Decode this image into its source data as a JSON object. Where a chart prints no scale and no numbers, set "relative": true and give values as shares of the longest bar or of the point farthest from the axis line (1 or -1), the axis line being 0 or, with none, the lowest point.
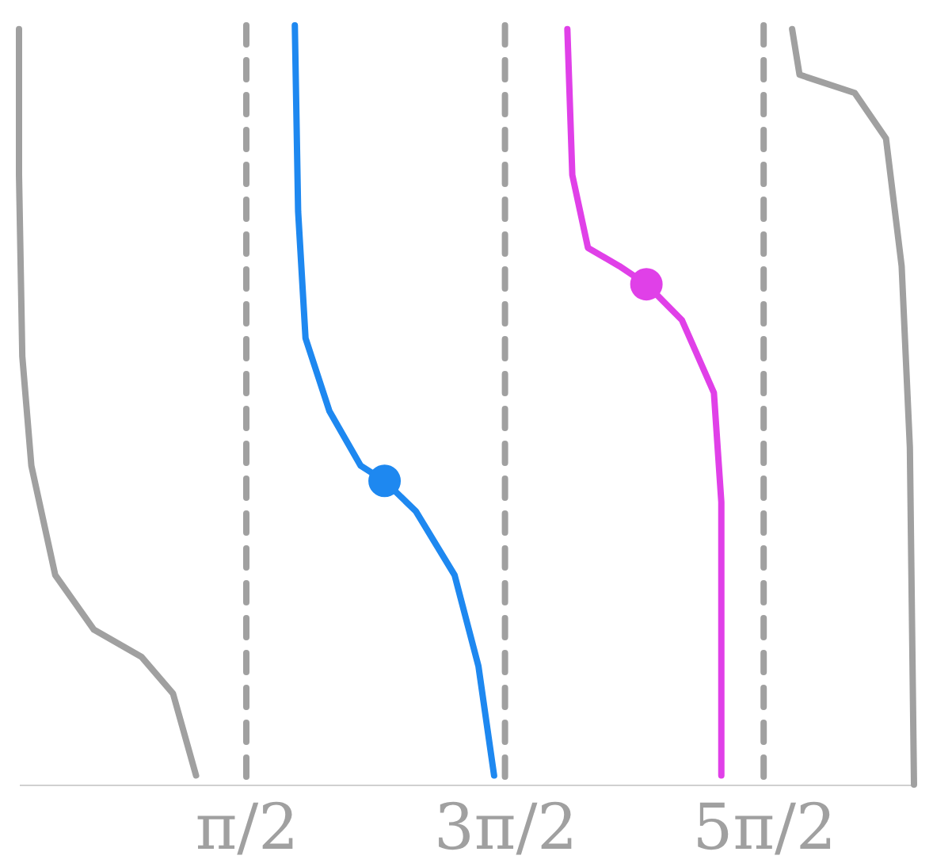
{
  "chart_data": {
    "type": "line",
    "relative": true,
    "xlim": [
      -1.19,
      9.68
    ],
    "xticks": [
      {
        "value": 1.5708,
        "label": "π/2"
      },
      {
        "value": 4.7124,
        "label": "3π/2"
      },
      {
        "value": 7.854,
        "label": "5π/2"
      }
    ],
    "tick_labels": "x",
    "grid": false,
    "line_style": "solid",
    "marker": "none",
    "series": [
      {
        "color": "#a0a0a0",
        "x": [
          -1.19,
          -1.19,
          -1.15,
          -1.04,
          -0.75,
          -0.28,
          0.3,
          0.68,
          0.96
        ],
        "values": [
          0.995,
          0.803,
          0.564,
          0.42,
          0.276,
          0.204,
          0.168,
          0.12,
          0.012
        ]
      },
      {
        "color": "#1e88f0",
        "x": [
          2.16,
          2.2,
          2.29,
          2.58,
          2.96,
          3.25,
          3.63,
          4.1,
          4.39,
          4.58
        ],
        "values": [
          1.0,
          0.755,
          0.588,
          0.492,
          0.42,
          0.4,
          0.36,
          0.276,
          0.156,
          0.012
        ]
      },
      {
        "color": "#e040e8",
        "x": [
          5.47,
          5.53,
          5.72,
          6.1,
          6.43,
          6.86,
          7.25,
          7.34,
          7.34
        ],
        "values": [
          0.995,
          0.803,
          0.707,
          0.683,
          0.659,
          0.612,
          0.516,
          0.372,
          0.012
        ]
      },
      {
        "color": "#a0a0a0",
        "x": [
          8.2,
          8.29,
          8.96,
          9.34,
          9.53,
          9.63,
          9.68
        ],
        "values": [
          0.995,
          0.935,
          0.911,
          0.851,
          0.683,
          0.444,
          0.0
        ]
      },
      {
        "type": "scatter",
        "marker": "circle",
        "color": "#1e88f0",
        "x": [
          3.25
        ],
        "values": [
          0.4
        ]
      },
      {
        "type": "scatter",
        "marker": "circle",
        "color": "#e040e8",
        "x": [
          6.43
        ],
        "values": [
          0.659
        ]
      }
    ],
    "ref_lines": [
      {
        "axis": "x",
        "value": 1.5708,
        "color": "#a0a0a0",
        "line_style": "dashed"
      },
      {
        "axis": "x",
        "value": 4.7124,
        "color": "#a0a0a0",
        "line_style": "dashed"
      },
      {
        "axis": "x",
        "value": 7.854,
        "color": "#a0a0a0",
        "line_style": "dashed"
      }
    ]
  }
}
